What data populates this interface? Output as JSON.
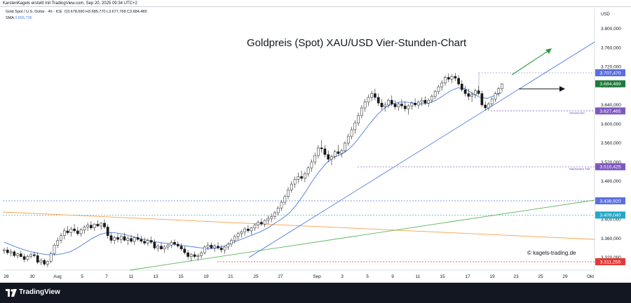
{
  "header": {
    "credit": "KarstenKagels erstellt mit TradingView.com, Sep 20, 2025 09:34 UTC+2"
  },
  "legend": {
    "symbol": "Gold Spot / U.S. Dollar · 4h · ICE",
    "ohlc": "O3.678,690  H3.685,770  L3.677,768  C3.684,489",
    "sma_label": "SMA",
    "sma_value": "3.665,735"
  },
  "chart_data": {
    "type": "candlestick",
    "title": "Goldpreis (Spot) XAU/USD Vier-Stunden-Chart",
    "y_axis_unit": "USD",
    "ylim": [
      3295,
      3835
    ],
    "y_ticks": [
      {
        "value": 3800,
        "label": "3.800,000"
      },
      {
        "value": 3760,
        "label": "3.760,000"
      },
      {
        "value": 3720,
        "label": "3.720,000"
      },
      {
        "value": 3680,
        "label": "3.680,000"
      },
      {
        "value": 3640,
        "label": "3.640,000"
      },
      {
        "value": 3600,
        "label": "3.600,000"
      },
      {
        "value": 3560,
        "label": "3.560,000"
      },
      {
        "value": 3520,
        "label": "3.520,000"
      },
      {
        "value": 3480,
        "label": "3.480,000"
      },
      {
        "value": 3440,
        "label": "3.440,000"
      },
      {
        "value": 3400,
        "label": "3.400,000"
      },
      {
        "value": 3360,
        "label": "3.360,000"
      },
      {
        "value": 3320,
        "label": "3.320,000"
      }
    ],
    "x_ticks": [
      "28",
      "30",
      "Aug",
      "5",
      "7",
      "11",
      "13",
      "15",
      "19",
      "21",
      "25",
      "27",
      "Sep",
      "3",
      "5",
      "9",
      "11",
      "15",
      "17",
      "19",
      "23",
      "25",
      "29",
      "Okt"
    ],
    "price_labels": [
      {
        "value": 3707.47,
        "label": "3.707,470",
        "color": "#5b6ee0"
      },
      {
        "value": 3684.489,
        "label": "3.684,489",
        "color": "#1e7a3a"
      },
      {
        "value": 3627.465,
        "label": "3.627,465",
        "color": "#7e57c2"
      },
      {
        "value": 3510.425,
        "label": "3.510,425",
        "color": "#7e57c2"
      },
      {
        "value": 3438.92,
        "label": "3.438,920",
        "color": "#5b6ee0"
      },
      {
        "value": 3409.04,
        "label": "3.409,040",
        "color": "#22a7c7"
      },
      {
        "value": 3311.255,
        "label": "3.311,255",
        "color": "#e53935"
      }
    ],
    "annotations": [
      "Verwischer",
      "Markantes Tief"
    ],
    "series": [
      {
        "type": "ohlc",
        "values": [
          [
            3334,
            3340,
            3328,
            3336
          ],
          [
            3336,
            3342,
            3326,
            3330
          ],
          [
            3330,
            3338,
            3322,
            3332
          ],
          [
            3332,
            3336,
            3320,
            3324
          ],
          [
            3324,
            3330,
            3318,
            3328
          ],
          [
            3328,
            3334,
            3320,
            3322
          ],
          [
            3322,
            3328,
            3310,
            3316
          ],
          [
            3316,
            3326,
            3312,
            3322
          ],
          [
            3322,
            3330,
            3318,
            3326
          ],
          [
            3326,
            3332,
            3320,
            3324
          ],
          [
            3324,
            3330,
            3306,
            3310
          ],
          [
            3310,
            3318,
            3304,
            3314
          ],
          [
            3314,
            3318,
            3302,
            3306
          ],
          [
            3306,
            3314,
            3300,
            3312
          ],
          [
            3312,
            3332,
            3308,
            3328
          ],
          [
            3328,
            3350,
            3324,
            3346
          ],
          [
            3346,
            3362,
            3340,
            3356
          ],
          [
            3356,
            3372,
            3350,
            3366
          ],
          [
            3366,
            3382,
            3358,
            3376
          ],
          [
            3376,
            3386,
            3368,
            3372
          ],
          [
            3372,
            3384,
            3364,
            3380
          ],
          [
            3380,
            3390,
            3372,
            3376
          ],
          [
            3376,
            3384,
            3366,
            3370
          ],
          [
            3370,
            3382,
            3364,
            3378
          ],
          [
            3378,
            3388,
            3370,
            3384
          ],
          [
            3384,
            3394,
            3376,
            3388
          ],
          [
            3388,
            3396,
            3378,
            3382
          ],
          [
            3382,
            3392,
            3376,
            3390
          ],
          [
            3390,
            3398,
            3384,
            3386
          ],
          [
            3386,
            3394,
            3378,
            3392
          ],
          [
            3392,
            3400,
            3380,
            3384
          ],
          [
            3384,
            3390,
            3360,
            3366
          ],
          [
            3366,
            3372,
            3350,
            3356
          ],
          [
            3356,
            3366,
            3348,
            3362
          ],
          [
            3362,
            3370,
            3352,
            3358
          ],
          [
            3358,
            3368,
            3350,
            3364
          ],
          [
            3364,
            3372,
            3354,
            3356
          ],
          [
            3356,
            3364,
            3346,
            3360
          ],
          [
            3360,
            3368,
            3350,
            3354
          ],
          [
            3354,
            3364,
            3346,
            3362
          ],
          [
            3362,
            3370,
            3354,
            3358
          ],
          [
            3358,
            3366,
            3350,
            3354
          ],
          [
            3354,
            3362,
            3346,
            3350
          ],
          [
            3350,
            3360,
            3344,
            3356
          ],
          [
            3356,
            3364,
            3348,
            3352
          ],
          [
            3352,
            3358,
            3336,
            3340
          ],
          [
            3340,
            3348,
            3332,
            3344
          ],
          [
            3344,
            3352,
            3336,
            3338
          ],
          [
            3338,
            3346,
            3330,
            3342
          ],
          [
            3342,
            3350,
            3336,
            3346
          ],
          [
            3346,
            3356,
            3340,
            3352
          ],
          [
            3352,
            3358,
            3344,
            3348
          ],
          [
            3348,
            3354,
            3340,
            3344
          ],
          [
            3344,
            3350,
            3334,
            3338
          ],
          [
            3338,
            3344,
            3326,
            3330
          ],
          [
            3330,
            3336,
            3316,
            3322
          ],
          [
            3322,
            3330,
            3312,
            3326
          ],
          [
            3326,
            3332,
            3318,
            3322
          ],
          [
            3322,
            3328,
            3314,
            3324
          ],
          [
            3324,
            3334,
            3318,
            3330
          ],
          [
            3330,
            3346,
            3326,
            3342
          ],
          [
            3342,
            3352,
            3336,
            3346
          ],
          [
            3346,
            3352,
            3338,
            3340
          ],
          [
            3340,
            3348,
            3332,
            3344
          ],
          [
            3344,
            3352,
            3336,
            3340
          ],
          [
            3340,
            3346,
            3330,
            3336
          ],
          [
            3336,
            3344,
            3328,
            3342
          ],
          [
            3342,
            3352,
            3336,
            3348
          ],
          [
            3348,
            3360,
            3342,
            3356
          ],
          [
            3356,
            3368,
            3350,
            3364
          ],
          [
            3364,
            3374,
            3356,
            3370
          ],
          [
            3370,
            3378,
            3362,
            3374
          ],
          [
            3374,
            3384,
            3366,
            3380
          ],
          [
            3380,
            3388,
            3372,
            3376
          ],
          [
            3376,
            3384,
            3368,
            3382
          ],
          [
            3382,
            3392,
            3376,
            3388
          ],
          [
            3388,
            3398,
            3380,
            3394
          ],
          [
            3394,
            3402,
            3386,
            3390
          ],
          [
            3390,
            3400,
            3384,
            3398
          ],
          [
            3398,
            3408,
            3390,
            3402
          ],
          [
            3402,
            3412,
            3394,
            3406
          ],
          [
            3406,
            3418,
            3400,
            3414
          ],
          [
            3414,
            3428,
            3408,
            3424
          ],
          [
            3424,
            3440,
            3418,
            3436
          ],
          [
            3436,
            3452,
            3430,
            3448
          ],
          [
            3448,
            3468,
            3442,
            3462
          ],
          [
            3462,
            3480,
            3456,
            3474
          ],
          [
            3474,
            3490,
            3466,
            3484
          ],
          [
            3484,
            3498,
            3476,
            3490
          ],
          [
            3490,
            3502,
            3480,
            3486
          ],
          [
            3486,
            3500,
            3478,
            3496
          ],
          [
            3496,
            3512,
            3490,
            3508
          ],
          [
            3508,
            3526,
            3500,
            3520
          ],
          [
            3520,
            3540,
            3514,
            3534
          ],
          [
            3534,
            3556,
            3528,
            3550
          ],
          [
            3550,
            3566,
            3540,
            3548
          ],
          [
            3548,
            3556,
            3530,
            3536
          ],
          [
            3536,
            3544,
            3520,
            3526
          ],
          [
            3526,
            3536,
            3514,
            3532
          ],
          [
            3532,
            3546,
            3526,
            3542
          ],
          [
            3542,
            3556,
            3534,
            3538
          ],
          [
            3538,
            3548,
            3530,
            3544
          ],
          [
            3544,
            3564,
            3540,
            3560
          ],
          [
            3560,
            3580,
            3554,
            3574
          ],
          [
            3574,
            3594,
            3568,
            3588
          ],
          [
            3588,
            3608,
            3580,
            3602
          ],
          [
            3602,
            3624,
            3596,
            3618
          ],
          [
            3618,
            3640,
            3612,
            3634
          ],
          [
            3634,
            3652,
            3626,
            3646
          ],
          [
            3646,
            3662,
            3638,
            3656
          ],
          [
            3656,
            3670,
            3648,
            3664
          ],
          [
            3664,
            3674,
            3650,
            3656
          ],
          [
            3656,
            3664,
            3638,
            3644
          ],
          [
            3644,
            3652,
            3630,
            3636
          ],
          [
            3636,
            3646,
            3626,
            3640
          ],
          [
            3640,
            3654,
            3634,
            3650
          ],
          [
            3650,
            3660,
            3638,
            3642
          ],
          [
            3642,
            3650,
            3630,
            3636
          ],
          [
            3636,
            3646,
            3628,
            3642
          ],
          [
            3642,
            3652,
            3632,
            3638
          ],
          [
            3638,
            3648,
            3626,
            3632
          ],
          [
            3632,
            3642,
            3620,
            3638
          ],
          [
            3638,
            3648,
            3630,
            3644
          ],
          [
            3644,
            3654,
            3636,
            3640
          ],
          [
            3640,
            3650,
            3632,
            3646
          ],
          [
            3646,
            3656,
            3638,
            3650
          ],
          [
            3650,
            3658,
            3640,
            3644
          ],
          [
            3644,
            3654,
            3636,
            3650
          ],
          [
            3650,
            3662,
            3644,
            3658
          ],
          [
            3658,
            3672,
            3652,
            3668
          ],
          [
            3668,
            3682,
            3662,
            3678
          ],
          [
            3678,
            3692,
            3670,
            3686
          ],
          [
            3686,
            3702,
            3680,
            3698
          ],
          [
            3698,
            3706,
            3688,
            3694
          ],
          [
            3694,
            3704,
            3686,
            3700
          ],
          [
            3700,
            3707,
            3690,
            3696
          ],
          [
            3696,
            3702,
            3680,
            3684
          ],
          [
            3684,
            3692,
            3668,
            3672
          ],
          [
            3672,
            3680,
            3658,
            3664
          ],
          [
            3664,
            3674,
            3650,
            3658
          ],
          [
            3658,
            3668,
            3646,
            3662
          ],
          [
            3662,
            3674,
            3654,
            3670
          ],
          [
            3670,
            3680,
            3660,
            3664
          ],
          [
            3664,
            3670,
            3636,
            3640
          ],
          [
            3640,
            3648,
            3628,
            3634
          ],
          [
            3634,
            3646,
            3628,
            3642
          ],
          [
            3642,
            3656,
            3636,
            3652
          ],
          [
            3652,
            3668,
            3646,
            3664
          ],
          [
            3664,
            3678,
            3658,
            3674
          ],
          [
            3674,
            3686,
            3668,
            3684
          ]
        ]
      },
      {
        "type": "sma",
        "values": [
          3352,
          3346,
          3340,
          3335,
          3331,
          3328,
          3326,
          3326,
          3328,
          3332,
          3340,
          3350,
          3360,
          3368,
          3372,
          3372,
          3370,
          3366,
          3362,
          3358,
          3355,
          3352,
          3350,
          3348,
          3346,
          3344,
          3342,
          3340,
          3338,
          3340,
          3344,
          3350,
          3356,
          3362,
          3368,
          3374,
          3382,
          3392,
          3402,
          3414,
          3432,
          3454,
          3478,
          3500,
          3518,
          3530,
          3536,
          3546,
          3562,
          3582,
          3602,
          3620,
          3634,
          3642,
          3646,
          3646,
          3644,
          3642,
          3644,
          3650,
          3660,
          3670,
          3676,
          3674,
          3664,
          3656,
          3654,
          3660,
          3666
        ]
      }
    ]
  }
}
